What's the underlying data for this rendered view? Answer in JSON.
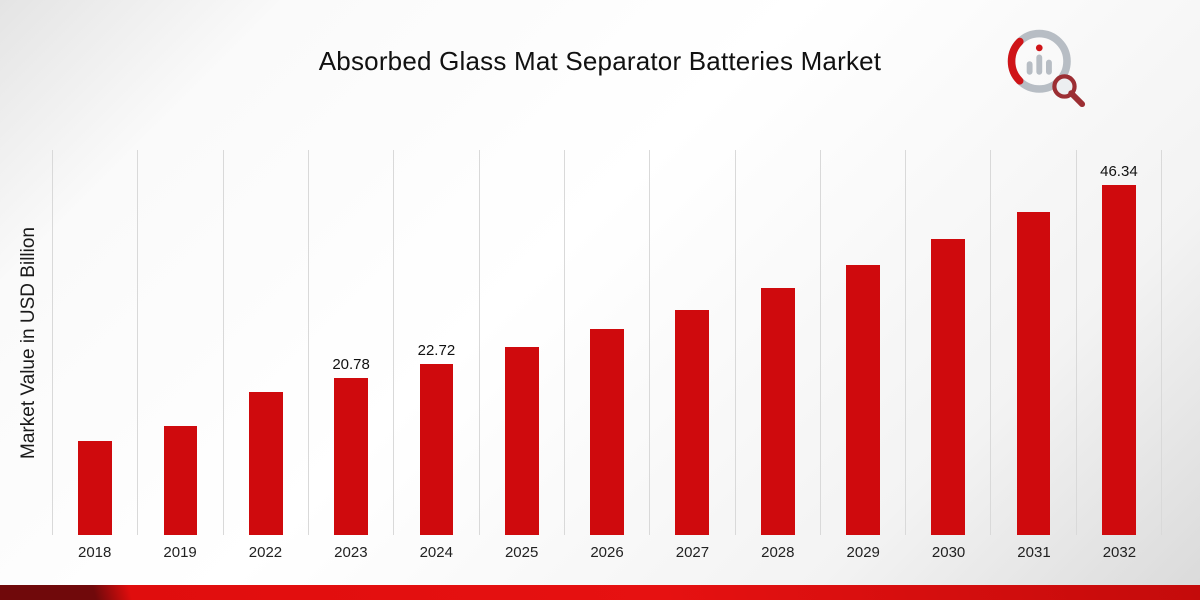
{
  "header": {
    "logo_icon": "market-research-future-logo-icon"
  },
  "chart_data": {
    "type": "bar",
    "title": "Absorbed Glass Mat Separator Batteries Market",
    "xlabel": "",
    "ylabel": "Market Value in USD Billion",
    "categories": [
      "2018",
      "2019",
      "2022",
      "2023",
      "2024",
      "2025",
      "2026",
      "2027",
      "2028",
      "2029",
      "2030",
      "2031",
      "2032"
    ],
    "values": [
      12.4,
      14.5,
      19.0,
      20.78,
      22.72,
      24.95,
      27.25,
      29.85,
      32.7,
      35.75,
      39.2,
      42.8,
      46.34
    ],
    "value_labels": [
      "",
      "",
      "",
      "20.78",
      "22.72",
      "",
      "",
      "",
      "",
      "",
      "",
      "",
      "46.34"
    ],
    "ylim": [
      0,
      51
    ],
    "grid": "vertical-gridlines",
    "legend": "none",
    "bar_color": "#cf0a0d",
    "gridline_color": "#d9d9d9"
  },
  "footer": {
    "stripe_color_left": "#70090b",
    "stripe_color_main": "#e00d0d"
  }
}
